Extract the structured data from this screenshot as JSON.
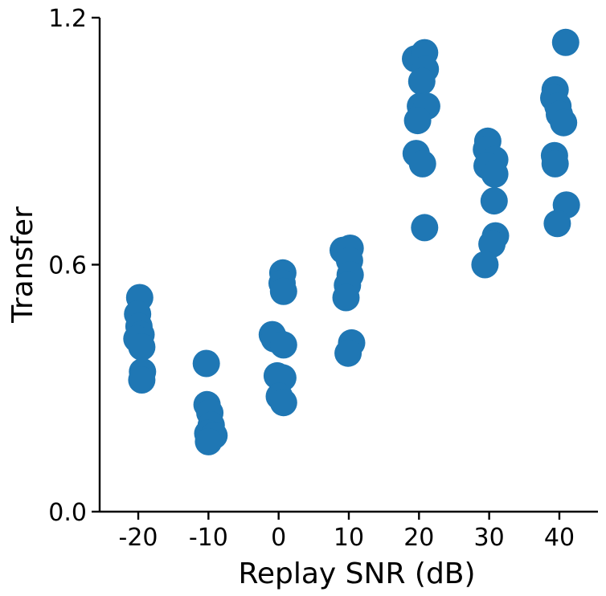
{
  "chart_data": {
    "type": "scatter",
    "title": "",
    "xlabel": "Replay SNR (dB)",
    "ylabel": "Transfer",
    "xlim": [
      -25.5,
      45.5
    ],
    "ylim": [
      0,
      1.2
    ],
    "x_ticks": [
      -20,
      -10,
      0,
      10,
      20,
      30,
      40
    ],
    "x_tick_labels": [
      "-20",
      "-10",
      "0",
      "10",
      "20",
      "30",
      "40"
    ],
    "y_ticks": [
      0,
      0.6,
      1.2
    ],
    "y_tick_labels": [
      "0.0",
      "0.6",
      "1.2"
    ],
    "marker_color": "#1f77b4",
    "grid": false,
    "points": [
      {
        "x": -19.8,
        "y": 0.52
      },
      {
        "x": -20.1,
        "y": 0.48
      },
      {
        "x": -19.9,
        "y": 0.45
      },
      {
        "x": -19.6,
        "y": 0.43
      },
      {
        "x": -20.2,
        "y": 0.42
      },
      {
        "x": -19.5,
        "y": 0.4
      },
      {
        "x": -19.4,
        "y": 0.34
      },
      {
        "x": -19.5,
        "y": 0.32
      },
      {
        "x": -10.3,
        "y": 0.36
      },
      {
        "x": -10.2,
        "y": 0.26
      },
      {
        "x": -9.8,
        "y": 0.24
      },
      {
        "x": -9.6,
        "y": 0.21
      },
      {
        "x": -10.1,
        "y": 0.19
      },
      {
        "x": -9.2,
        "y": 0.185
      },
      {
        "x": -10.0,
        "y": 0.17
      },
      {
        "x": 0.6,
        "y": 0.58
      },
      {
        "x": 0.5,
        "y": 0.555
      },
      {
        "x": 0.7,
        "y": 0.535
      },
      {
        "x": -0.9,
        "y": 0.43
      },
      {
        "x": -0.6,
        "y": 0.42
      },
      {
        "x": 0.7,
        "y": 0.405
      },
      {
        "x": -0.2,
        "y": 0.33
      },
      {
        "x": 0.6,
        "y": 0.325
      },
      {
        "x": 0.1,
        "y": 0.28
      },
      {
        "x": 0.7,
        "y": 0.265
      },
      {
        "x": 9.2,
        "y": 0.635
      },
      {
        "x": 10.2,
        "y": 0.64
      },
      {
        "x": 10.1,
        "y": 0.61
      },
      {
        "x": 10.2,
        "y": 0.575
      },
      {
        "x": 9.8,
        "y": 0.55
      },
      {
        "x": 9.6,
        "y": 0.52
      },
      {
        "x": 10.4,
        "y": 0.41
      },
      {
        "x": 9.9,
        "y": 0.385
      },
      {
        "x": 19.5,
        "y": 1.1
      },
      {
        "x": 20.8,
        "y": 1.115
      },
      {
        "x": 20.9,
        "y": 1.075
      },
      {
        "x": 20.4,
        "y": 1.045
      },
      {
        "x": 20.2,
        "y": 0.985
      },
      {
        "x": 21.1,
        "y": 0.985
      },
      {
        "x": 19.8,
        "y": 0.95
      },
      {
        "x": 19.6,
        "y": 0.87
      },
      {
        "x": 20.5,
        "y": 0.845
      },
      {
        "x": 20.8,
        "y": 0.69
      },
      {
        "x": 29.8,
        "y": 0.9
      },
      {
        "x": 29.6,
        "y": 0.88
      },
      {
        "x": 30.8,
        "y": 0.855
      },
      {
        "x": 29.7,
        "y": 0.84
      },
      {
        "x": 30.8,
        "y": 0.82
      },
      {
        "x": 30.7,
        "y": 0.755
      },
      {
        "x": 30.9,
        "y": 0.67
      },
      {
        "x": 30.4,
        "y": 0.65
      },
      {
        "x": 29.4,
        "y": 0.6
      },
      {
        "x": 40.9,
        "y": 1.14
      },
      {
        "x": 39.4,
        "y": 1.025
      },
      {
        "x": 39.2,
        "y": 1.005
      },
      {
        "x": 39.8,
        "y": 0.985
      },
      {
        "x": 40.0,
        "y": 0.965
      },
      {
        "x": 40.6,
        "y": 0.945
      },
      {
        "x": 39.3,
        "y": 0.865
      },
      {
        "x": 39.4,
        "y": 0.845
      },
      {
        "x": 41.0,
        "y": 0.745
      },
      {
        "x": 39.7,
        "y": 0.7
      }
    ]
  }
}
